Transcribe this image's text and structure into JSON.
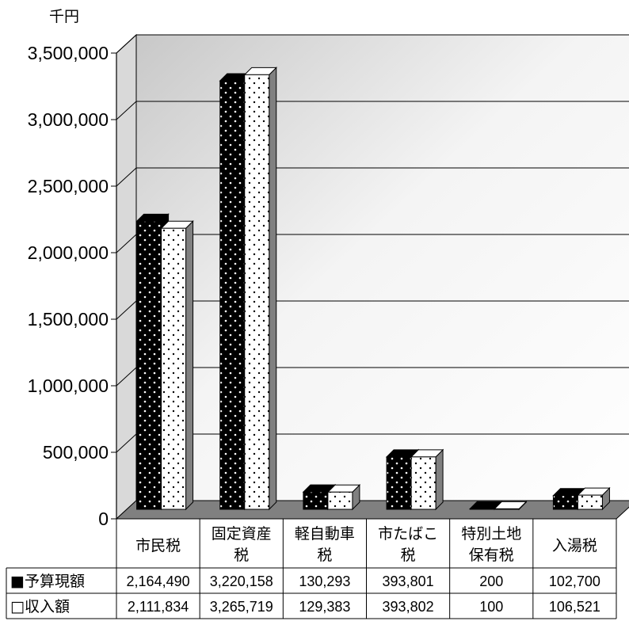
{
  "chart_data": {
    "type": "bar",
    "unit_label": "千円",
    "categories": [
      [
        "市民税"
      ],
      [
        "固定資産",
        "税"
      ],
      [
        "軽自動車",
        "税"
      ],
      [
        "市たばこ",
        "税"
      ],
      [
        "特別土地",
        "保有税"
      ],
      [
        "入湯税"
      ]
    ],
    "series": [
      {
        "name": "予算現額",
        "marker": "■",
        "values": [
          2164490,
          3220158,
          130293,
          393801,
          200,
          102700
        ],
        "labels": [
          "2,164,490",
          "3,220,158",
          "130,293",
          "393,801",
          "200",
          "102,700"
        ],
        "pattern": "black-with-white-dots"
      },
      {
        "name": "収入額",
        "marker": "□",
        "values": [
          2111834,
          3265719,
          129383,
          393802,
          100,
          106521
        ],
        "labels": [
          "2,111,834",
          "3,265,719",
          "129,383",
          "393,802",
          "100",
          "106,521"
        ],
        "pattern": "white-with-black-dots"
      }
    ],
    "ylim": [
      0,
      3500000
    ],
    "yticks": [
      0,
      500000,
      1000000,
      1500000,
      2000000,
      2500000,
      3000000,
      3500000
    ],
    "ytick_labels": [
      "0",
      "500,000",
      "1,000,000",
      "1,500,000",
      "2,000,000",
      "2,500,000",
      "3,000,000",
      "3,500,000"
    ],
    "grid": true,
    "three_d": true,
    "data_table": true,
    "legend": "data-table-left"
  }
}
